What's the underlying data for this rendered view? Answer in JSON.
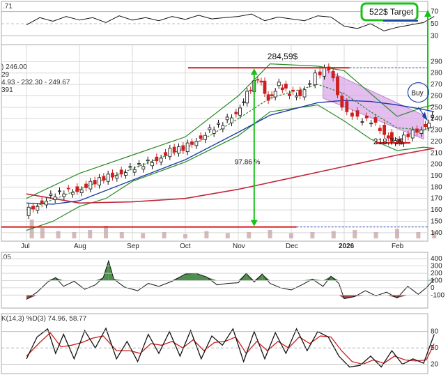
{
  "chart_data": {
    "type": "line",
    "title": "",
    "colors": {
      "price": "#111111",
      "up_candle": "#111111",
      "down_candle": "#cc1f1f",
      "ma_short": "#2a8a2a",
      "ma_mid": "#1f3fa8",
      "ma_long": "#c0283a",
      "bollinger": "#2a8a2a",
      "target_box": "#18c018",
      "arrow_green": "#18c018",
      "channel_fill": "#d9a3e8",
      "rsi": "#111111",
      "cci_pos": "#2f7a2f",
      "cci_neg": "#8b2a2a",
      "stoch_k": "#111111",
      "stoch_d": "#d01818",
      "support_line": "#d81818",
      "volume": "#c9a9a9"
    },
    "x_labels": [
      "Jul",
      "Aug",
      "Sep",
      "Oct",
      "Nov",
      "Dec",
      "2026",
      "Feb"
    ],
    "price_axis": {
      "ticks": [
        140,
        150,
        160,
        170,
        180,
        190,
        200,
        210,
        220,
        230,
        240,
        250,
        260,
        270,
        280,
        290
      ],
      "ylim": [
        135,
        300
      ]
    },
    "price_series": [
      {
        "m": 0,
        "v": 158
      },
      {
        "m": 0.25,
        "v": 165
      },
      {
        "m": 0.5,
        "v": 172
      },
      {
        "m": 0.75,
        "v": 176
      },
      {
        "m": 1.0,
        "v": 178
      },
      {
        "m": 1.25,
        "v": 183
      },
      {
        "m": 1.5,
        "v": 188
      },
      {
        "m": 1.75,
        "v": 192
      },
      {
        "m": 2.0,
        "v": 196
      },
      {
        "m": 2.25,
        "v": 200
      },
      {
        "m": 2.5,
        "v": 205
      },
      {
        "m": 2.75,
        "v": 212
      },
      {
        "m": 3.0,
        "v": 214
      },
      {
        "m": 3.25,
        "v": 222
      },
      {
        "m": 3.5,
        "v": 230
      },
      {
        "m": 3.75,
        "v": 236
      },
      {
        "m": 4.0,
        "v": 246
      },
      {
        "m": 4.2,
        "v": 262
      },
      {
        "m": 4.4,
        "v": 276
      },
      {
        "m": 4.6,
        "v": 258
      },
      {
        "m": 4.8,
        "v": 270
      },
      {
        "m": 5.0,
        "v": 262
      },
      {
        "m": 5.2,
        "v": 262
      },
      {
        "m": 5.5,
        "v": 278
      },
      {
        "m": 5.75,
        "v": 284.59
      },
      {
        "m": 6.0,
        "v": 252
      },
      {
        "m": 6.3,
        "v": 240
      },
      {
        "m": 6.55,
        "v": 238
      },
      {
        "m": 6.8,
        "v": 228
      },
      {
        "m": 7.0,
        "v": 218.73
      },
      {
        "m": 7.25,
        "v": 226
      },
      {
        "m": 7.5,
        "v": 232
      },
      {
        "m": 7.7,
        "v": 241
      }
    ],
    "bollinger_upper": [
      {
        "m": 0,
        "v": 170
      },
      {
        "m": 1,
        "v": 192
      },
      {
        "m": 2,
        "v": 208
      },
      {
        "m": 3,
        "v": 224
      },
      {
        "m": 4,
        "v": 260
      },
      {
        "m": 4.6,
        "v": 288
      },
      {
        "m": 5.5,
        "v": 286
      },
      {
        "m": 6.0,
        "v": 282
      },
      {
        "m": 6.5,
        "v": 262
      },
      {
        "m": 7.0,
        "v": 242
      },
      {
        "m": 7.5,
        "v": 250
      },
      {
        "m": 7.7,
        "v": 252
      }
    ],
    "bollinger_lower": [
      {
        "m": 0,
        "v": 142
      },
      {
        "m": 0.5,
        "v": 150
      },
      {
        "m": 1,
        "v": 163
      },
      {
        "m": 1.5,
        "v": 170
      },
      {
        "m": 2,
        "v": 185
      },
      {
        "m": 3,
        "v": 202
      },
      {
        "m": 4,
        "v": 225
      },
      {
        "m": 4.6,
        "v": 246
      },
      {
        "m": 5.5,
        "v": 252
      },
      {
        "m": 6.0,
        "v": 238
      },
      {
        "m": 6.5,
        "v": 222
      },
      {
        "m": 7.0,
        "v": 212
      },
      {
        "m": 7.5,
        "v": 215
      },
      {
        "m": 7.7,
        "v": 214
      }
    ],
    "ma_short_series": [
      {
        "m": 0,
        "v": 160
      },
      {
        "m": 1,
        "v": 178
      },
      {
        "m": 2,
        "v": 196
      },
      {
        "m": 3,
        "v": 214
      },
      {
        "m": 3.5,
        "v": 226
      },
      {
        "m": 4,
        "v": 240
      },
      {
        "m": 4.6,
        "v": 258
      },
      {
        "m": 5.5,
        "v": 270
      },
      {
        "m": 6.0,
        "v": 262
      },
      {
        "m": 6.5,
        "v": 246
      },
      {
        "m": 7.0,
        "v": 232
      },
      {
        "m": 7.5,
        "v": 230
      },
      {
        "m": 7.7,
        "v": 233
      }
    ],
    "ma_mid_series": [
      {
        "m": 0,
        "v": 166
      },
      {
        "m": 0.5,
        "v": 165
      },
      {
        "m": 1,
        "v": 168
      },
      {
        "m": 2,
        "v": 186
      },
      {
        "m": 3,
        "v": 204
      },
      {
        "m": 4,
        "v": 228
      },
      {
        "m": 4.6,
        "v": 243
      },
      {
        "m": 5.5,
        "v": 254
      },
      {
        "m": 6.0,
        "v": 256
      },
      {
        "m": 6.5,
        "v": 255
      },
      {
        "m": 7.0,
        "v": 252
      },
      {
        "m": 7.5,
        "v": 248
      },
      {
        "m": 7.7,
        "v": 246
      }
    ],
    "ma_long_series": [
      {
        "m": 0,
        "v": 174
      },
      {
        "m": 0.5,
        "v": 170
      },
      {
        "m": 1,
        "v": 166
      },
      {
        "m": 2,
        "v": 167
      },
      {
        "m": 3,
        "v": 170
      },
      {
        "m": 4,
        "v": 178
      },
      {
        "m": 5,
        "v": 188
      },
      {
        "m": 6,
        "v": 198
      },
      {
        "m": 7,
        "v": 208
      },
      {
        "m": 7.7,
        "v": 214
      }
    ],
    "volume_series": [
      {
        "m": 0.1,
        "v": 0.9
      },
      {
        "m": 0.3,
        "v": 0.5
      },
      {
        "m": 0.6,
        "v": 0.35
      },
      {
        "m": 0.9,
        "v": 0.3
      },
      {
        "m": 1.2,
        "v": 0.4
      },
      {
        "m": 1.5,
        "v": 0.6
      },
      {
        "m": 1.8,
        "v": 0.3
      },
      {
        "m": 2.2,
        "v": 0.25
      },
      {
        "m": 2.6,
        "v": 0.3
      },
      {
        "m": 3.0,
        "v": 0.2
      },
      {
        "m": 3.4,
        "v": 0.35
      },
      {
        "m": 3.8,
        "v": 0.25
      },
      {
        "m": 4.2,
        "v": 0.3
      },
      {
        "m": 4.6,
        "v": 0.4
      },
      {
        "m": 5.0,
        "v": 0.25
      },
      {
        "m": 5.4,
        "v": 0.3
      },
      {
        "m": 5.8,
        "v": 0.35
      },
      {
        "m": 6.2,
        "v": 0.4
      },
      {
        "m": 6.6,
        "v": 0.3
      },
      {
        "m": 7.0,
        "v": 0.45
      },
      {
        "m": 7.4,
        "v": 0.3
      },
      {
        "m": 7.7,
        "v": 0.35
      }
    ],
    "rsi_panel": {
      "label": ".71",
      "ticks": [
        30,
        50,
        70
      ],
      "ylim": [
        20,
        80
      ],
      "series": [
        {
          "m": 0,
          "v": 48
        },
        {
          "m": 0.25,
          "v": 60
        },
        {
          "m": 0.5,
          "v": 54
        },
        {
          "m": 0.75,
          "v": 62
        },
        {
          "m": 1.0,
          "v": 56
        },
        {
          "m": 1.25,
          "v": 60
        },
        {
          "m": 1.5,
          "v": 52
        },
        {
          "m": 1.75,
          "v": 63
        },
        {
          "m": 2.0,
          "v": 56
        },
        {
          "m": 2.25,
          "v": 60
        },
        {
          "m": 2.5,
          "v": 55
        },
        {
          "m": 2.75,
          "v": 62
        },
        {
          "m": 3.0,
          "v": 57
        },
        {
          "m": 3.25,
          "v": 64
        },
        {
          "m": 3.5,
          "v": 58
        },
        {
          "m": 3.75,
          "v": 60
        },
        {
          "m": 4.0,
          "v": 62
        },
        {
          "m": 4.25,
          "v": 66
        },
        {
          "m": 4.5,
          "v": 55
        },
        {
          "m": 4.75,
          "v": 61
        },
        {
          "m": 5.0,
          "v": 58
        },
        {
          "m": 5.25,
          "v": 55
        },
        {
          "m": 5.5,
          "v": 63
        },
        {
          "m": 5.75,
          "v": 61
        },
        {
          "m": 6.0,
          "v": 46
        },
        {
          "m": 6.25,
          "v": 42
        },
        {
          "m": 6.5,
          "v": 50
        },
        {
          "m": 6.75,
          "v": 38
        },
        {
          "m": 7.0,
          "v": 44
        },
        {
          "m": 7.25,
          "v": 48
        },
        {
          "m": 7.5,
          "v": 52
        },
        {
          "m": 7.7,
          "v": 62
        }
      ]
    },
    "cci_panel": {
      "label": ".05",
      "ticks": [
        -100,
        0,
        100,
        200,
        300,
        400
      ],
      "ylim": [
        -260,
        450
      ],
      "series": [
        {
          "m": 0,
          "v": -160
        },
        {
          "m": 0.2,
          "v": -60
        },
        {
          "m": 0.4,
          "v": 80
        },
        {
          "m": 0.55,
          "v": 140
        },
        {
          "m": 0.7,
          "v": 20
        },
        {
          "m": 0.9,
          "v": 90
        },
        {
          "m": 1.1,
          "v": -20
        },
        {
          "m": 1.3,
          "v": 40
        },
        {
          "m": 1.45,
          "v": 140
        },
        {
          "m": 1.55,
          "v": 370
        },
        {
          "m": 1.65,
          "v": 120
        },
        {
          "m": 1.85,
          "v": 10
        },
        {
          "m": 2.1,
          "v": -40
        },
        {
          "m": 2.3,
          "v": 60
        },
        {
          "m": 2.5,
          "v": 20
        },
        {
          "m": 2.75,
          "v": 90
        },
        {
          "m": 3.0,
          "v": 190
        },
        {
          "m": 3.2,
          "v": 200
        },
        {
          "m": 3.4,
          "v": 150
        },
        {
          "m": 3.6,
          "v": 40
        },
        {
          "m": 3.8,
          "v": 60
        },
        {
          "m": 4.0,
          "v": 70
        },
        {
          "m": 4.15,
          "v": 200
        },
        {
          "m": 4.3,
          "v": 80
        },
        {
          "m": 4.45,
          "v": 190
        },
        {
          "m": 4.6,
          "v": 60
        },
        {
          "m": 4.8,
          "v": 0
        },
        {
          "m": 5.0,
          "v": -30
        },
        {
          "m": 5.2,
          "v": 40
        },
        {
          "m": 5.4,
          "v": 120
        },
        {
          "m": 5.6,
          "v": 20
        },
        {
          "m": 5.75,
          "v": 160
        },
        {
          "m": 5.9,
          "v": 60
        },
        {
          "m": 6.0,
          "v": -150
        },
        {
          "m": 6.2,
          "v": -120
        },
        {
          "m": 6.4,
          "v": -40
        },
        {
          "m": 6.6,
          "v": -110
        },
        {
          "m": 6.8,
          "v": -60
        },
        {
          "m": 7.0,
          "v": -140
        },
        {
          "m": 7.2,
          "v": 20
        },
        {
          "m": 7.4,
          "v": -90
        },
        {
          "m": 7.55,
          "v": 0
        },
        {
          "m": 7.7,
          "v": 120
        }
      ]
    },
    "stoch_panel": {
      "label": "K(14,3) %D(3) 74.96, 58.77",
      "ticks": [
        20,
        50,
        80
      ],
      "ylim": [
        8,
        95
      ],
      "k_series": [
        {
          "m": 0,
          "v": 30
        },
        {
          "m": 0.2,
          "v": 70
        },
        {
          "m": 0.4,
          "v": 85
        },
        {
          "m": 0.55,
          "v": 40
        },
        {
          "m": 0.7,
          "v": 75
        },
        {
          "m": 0.9,
          "v": 30
        },
        {
          "m": 1.1,
          "v": 82
        },
        {
          "m": 1.3,
          "v": 50
        },
        {
          "m": 1.5,
          "v": 86
        },
        {
          "m": 1.7,
          "v": 30
        },
        {
          "m": 1.9,
          "v": 62
        },
        {
          "m": 2.1,
          "v": 25
        },
        {
          "m": 2.3,
          "v": 75
        },
        {
          "m": 2.5,
          "v": 40
        },
        {
          "m": 2.7,
          "v": 80
        },
        {
          "m": 2.9,
          "v": 35
        },
        {
          "m": 3.1,
          "v": 82
        },
        {
          "m": 3.3,
          "v": 30
        },
        {
          "m": 3.5,
          "v": 72
        },
        {
          "m": 3.7,
          "v": 55
        },
        {
          "m": 3.9,
          "v": 85
        },
        {
          "m": 4.1,
          "v": 25
        },
        {
          "m": 4.3,
          "v": 80
        },
        {
          "m": 4.5,
          "v": 30
        },
        {
          "m": 4.7,
          "v": 78
        },
        {
          "m": 4.9,
          "v": 40
        },
        {
          "m": 5.1,
          "v": 85
        },
        {
          "m": 5.3,
          "v": 45
        },
        {
          "m": 5.5,
          "v": 80
        },
        {
          "m": 5.7,
          "v": 70
        },
        {
          "m": 5.9,
          "v": 35
        },
        {
          "m": 6.1,
          "v": 15
        },
        {
          "m": 6.3,
          "v": 18
        },
        {
          "m": 6.5,
          "v": 35
        },
        {
          "m": 6.7,
          "v": 15
        },
        {
          "m": 6.9,
          "v": 45
        },
        {
          "m": 7.1,
          "v": 20
        },
        {
          "m": 7.3,
          "v": 30
        },
        {
          "m": 7.5,
          "v": 22
        },
        {
          "m": 7.7,
          "v": 75
        }
      ],
      "d_series": [
        {
          "m": 0,
          "v": 35
        },
        {
          "m": 0.25,
          "v": 60
        },
        {
          "m": 0.45,
          "v": 78
        },
        {
          "m": 0.65,
          "v": 52
        },
        {
          "m": 0.85,
          "v": 55
        },
        {
          "m": 1.05,
          "v": 60
        },
        {
          "m": 1.25,
          "v": 68
        },
        {
          "m": 1.45,
          "v": 72
        },
        {
          "m": 1.7,
          "v": 45
        },
        {
          "m": 1.95,
          "v": 45
        },
        {
          "m": 2.15,
          "v": 40
        },
        {
          "m": 2.35,
          "v": 58
        },
        {
          "m": 2.55,
          "v": 55
        },
        {
          "m": 2.75,
          "v": 62
        },
        {
          "m": 2.95,
          "v": 50
        },
        {
          "m": 3.15,
          "v": 65
        },
        {
          "m": 3.35,
          "v": 45
        },
        {
          "m": 3.55,
          "v": 60
        },
        {
          "m": 3.75,
          "v": 62
        },
        {
          "m": 3.95,
          "v": 70
        },
        {
          "m": 4.15,
          "v": 40
        },
        {
          "m": 4.35,
          "v": 62
        },
        {
          "m": 4.55,
          "v": 45
        },
        {
          "m": 4.75,
          "v": 62
        },
        {
          "m": 4.95,
          "v": 50
        },
        {
          "m": 5.15,
          "v": 70
        },
        {
          "m": 5.35,
          "v": 58
        },
        {
          "m": 5.55,
          "v": 72
        },
        {
          "m": 5.75,
          "v": 70
        },
        {
          "m": 5.95,
          "v": 45
        },
        {
          "m": 6.15,
          "v": 25
        },
        {
          "m": 6.35,
          "v": 20
        },
        {
          "m": 6.55,
          "v": 28
        },
        {
          "m": 6.75,
          "v": 22
        },
        {
          "m": 6.95,
          "v": 35
        },
        {
          "m": 7.15,
          "v": 28
        },
        {
          "m": 7.35,
          "v": 26
        },
        {
          "m": 7.55,
          "v": 28
        },
        {
          "m": 7.7,
          "v": 58
        }
      ]
    },
    "legend_lines": [
      {
        "text": ") 246.00",
        "color": "#222222"
      },
      {
        "text": "29",
        "color": "#c0283a"
      },
      {
        "text": "4.93 - 232.30 - 249.67",
        "color": "#2a8a2a"
      },
      {
        "text": "391",
        "color": "#1f3fa8"
      }
    ],
    "annotations": {
      "target": "522$ Target",
      "high": "284,59$",
      "low": "218,73$",
      "percent": "97.86 %",
      "buy": "Buy"
    },
    "levels": {
      "high_line": 284.59,
      "low_line": 145,
      "support": 218.73
    }
  }
}
